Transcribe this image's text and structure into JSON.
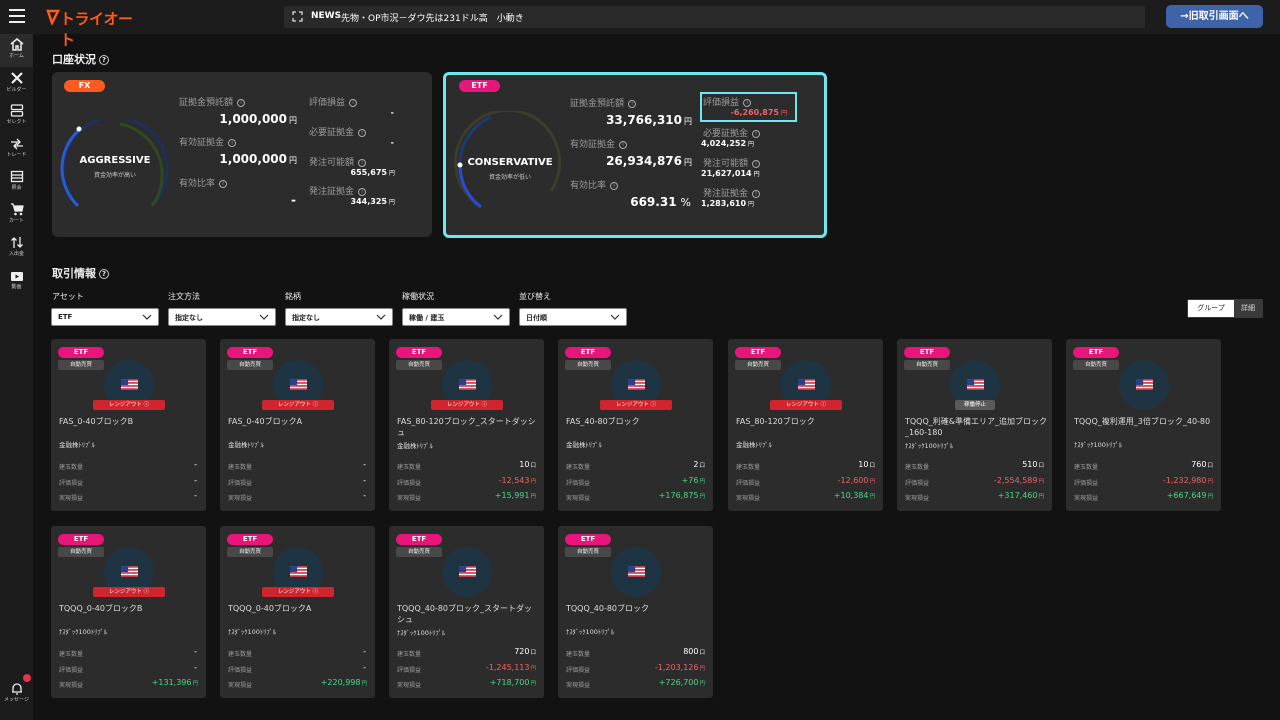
{
  "header": {
    "logo_text": "トライオート",
    "news_label": "NEWS",
    "news_text": "先物・OP市況－ダウ先は231ドル高　小動き",
    "old_screen_button": "→旧取引画面へ"
  },
  "sidebar": {
    "items": [
      {
        "label": "ホーム",
        "icon": "home-icon",
        "active": true
      },
      {
        "label": "ビルダー",
        "icon": "tools-icon"
      },
      {
        "label": "セレクト",
        "icon": "select-icon"
      },
      {
        "label": "トレード",
        "icon": "trade-icon"
      },
      {
        "label": "照会",
        "icon": "list-icon"
      },
      {
        "label": "カート",
        "icon": "cart-icon"
      },
      {
        "label": "入出金",
        "icon": "transfer-icon"
      },
      {
        "label": "動画",
        "icon": "video-icon"
      }
    ],
    "message_label": "メッセージ"
  },
  "account_status": {
    "title": "口座状況",
    "fx": {
      "badge": "FX",
      "gauge_label": "AGGRESSIVE",
      "gauge_sub": "資金効率が高い",
      "deposit_label": "証拠金預託額",
      "deposit_value": "1,000,000",
      "effective_label": "有効証拠金",
      "effective_value": "1,000,000",
      "ratio_label": "有効比率",
      "ratio_value": "-",
      "pl_label": "評価損益",
      "pl_value": "-",
      "required_label": "必要証拠金",
      "required_value": "-",
      "available_label": "発注可能額",
      "available_value": "655,675",
      "ordered_label": "発注証拠金",
      "ordered_value": "344,325",
      "yen": "円"
    },
    "etf": {
      "badge": "ETF",
      "gauge_label": "CONSERVATIVE",
      "gauge_sub": "資金効率が低い",
      "deposit_label": "証拠金預託額",
      "deposit_value": "33,766,310",
      "effective_label": "有効証拠金",
      "effective_value": "26,934,876",
      "ratio_label": "有効比率",
      "ratio_value": "669.31",
      "ratio_unit": "%",
      "pl_label": "評価損益",
      "pl_value": "-6,260,875",
      "required_label": "必要証拠金",
      "required_value": "4,024,252",
      "available_label": "発注可能額",
      "available_value": "21,627,014",
      "ordered_label": "発注証拠金",
      "ordered_value": "1,283,610",
      "yen": "円"
    }
  },
  "trade_info": {
    "title": "取引情報",
    "filters": [
      {
        "label": "アセット",
        "value": "ETF"
      },
      {
        "label": "注文方法",
        "value": "指定なし"
      },
      {
        "label": "銘柄",
        "value": "指定なし"
      },
      {
        "label": "稼働状況",
        "value": "稼働 / 建玉"
      },
      {
        "label": "並び替え",
        "value": "日付順"
      }
    ],
    "view_toggle": {
      "group": "グループ",
      "detail": "詳細"
    },
    "row_labels": {
      "position": "建玉数量",
      "pl": "評価損益",
      "realized": "実現損益"
    },
    "cards": [
      {
        "badge": "ETF",
        "auto": "自動売買",
        "status": "レンジアウト",
        "status_type": "out",
        "name": "FAS_0-40ブロックB",
        "category": "金融株ﾄﾘﾌﾟﾙ",
        "qty": "-",
        "qty_unit": "",
        "pl": "-",
        "pl_unit": "",
        "pl_sign": "",
        "realized": "-",
        "realized_unit": "",
        "realized_sign": ""
      },
      {
        "badge": "ETF",
        "auto": "自動売買",
        "status": "レンジアウト",
        "status_type": "out",
        "name": "FAS_0-40ブロックA",
        "category": "金融株ﾄﾘﾌﾟﾙ",
        "qty": "-",
        "qty_unit": "",
        "pl": "-",
        "pl_unit": "",
        "pl_sign": "",
        "realized": "-",
        "realized_unit": "",
        "realized_sign": ""
      },
      {
        "badge": "ETF",
        "auto": "自動売買",
        "status": "レンジアウト",
        "status_type": "out",
        "name": "FAS_80-120ブロック_スタートダッシュ",
        "category": "金融株ﾄﾘﾌﾟﾙ",
        "qty": "10",
        "qty_unit": "口",
        "pl": "-12,543",
        "pl_unit": "円",
        "pl_sign": "neg",
        "realized": "+15,991",
        "realized_unit": "円",
        "realized_sign": "pos"
      },
      {
        "badge": "ETF",
        "auto": "自動売買",
        "status": "レンジアウト",
        "status_type": "out",
        "name": "FAS_40-80ブロック",
        "category": "金融株ﾄﾘﾌﾟﾙ",
        "qty": "2",
        "qty_unit": "口",
        "pl": "+76",
        "pl_unit": "円",
        "pl_sign": "pos",
        "realized": "+176,875",
        "realized_unit": "円",
        "realized_sign": "pos"
      },
      {
        "badge": "ETF",
        "auto": "自動売買",
        "status": "レンジアウト",
        "status_type": "out",
        "name": "FAS_80-120ブロック",
        "category": "金融株ﾄﾘﾌﾟﾙ",
        "qty": "10",
        "qty_unit": "口",
        "pl": "-12,600",
        "pl_unit": "円",
        "pl_sign": "neg",
        "realized": "+10,384",
        "realized_unit": "円",
        "realized_sign": "pos"
      },
      {
        "badge": "ETF",
        "auto": "自動売買",
        "status": "稼働停止",
        "status_type": "stop",
        "name": "TQQQ_利確&準備エリア_追加ブロック_160-180",
        "category": "ﾅｽﾀﾞｯｸ100ﾄﾘﾌﾟﾙ",
        "qty": "510",
        "qty_unit": "口",
        "pl": "-2,554,589",
        "pl_unit": "円",
        "pl_sign": "neg",
        "realized": "+317,460",
        "realized_unit": "円",
        "realized_sign": "pos"
      },
      {
        "badge": "ETF",
        "auto": "自動売買",
        "status": "",
        "status_type": "none",
        "name": "TQQQ_複利運用_3倍ブロック_40-80",
        "category": "ﾅｽﾀﾞｯｸ100ﾄﾘﾌﾟﾙ",
        "qty": "760",
        "qty_unit": "口",
        "pl": "-1,232,980",
        "pl_unit": "円",
        "pl_sign": "neg",
        "realized": "+667,649",
        "realized_unit": "円",
        "realized_sign": "pos"
      },
      {
        "badge": "ETF",
        "auto": "自動売買",
        "status": "レンジアウト",
        "status_type": "out",
        "name": "TQQQ_0-40ブロックB",
        "category": "ﾅｽﾀﾞｯｸ100ﾄﾘﾌﾟﾙ",
        "qty": "-",
        "qty_unit": "",
        "pl": "-",
        "pl_unit": "",
        "pl_sign": "",
        "realized": "+131,396",
        "realized_unit": "円",
        "realized_sign": "pos"
      },
      {
        "badge": "ETF",
        "auto": "自動売買",
        "status": "レンジアウト",
        "status_type": "out",
        "name": "TQQQ_0-40ブロックA",
        "category": "ﾅｽﾀﾞｯｸ100ﾄﾘﾌﾟﾙ",
        "qty": "-",
        "qty_unit": "",
        "pl": "-",
        "pl_unit": "",
        "pl_sign": "",
        "realized": "+220,998",
        "realized_unit": "円",
        "realized_sign": "pos"
      },
      {
        "badge": "ETF",
        "auto": "自動売買",
        "status": "",
        "status_type": "none",
        "name": "TQQQ_40-80ブロック_スタートダッシュ",
        "category": "ﾅｽﾀﾞｯｸ100ﾄﾘﾌﾟﾙ",
        "qty": "720",
        "qty_unit": "口",
        "pl": "-1,245,113",
        "pl_unit": "円",
        "pl_sign": "neg",
        "realized": "+718,700",
        "realized_unit": "円",
        "realized_sign": "pos"
      },
      {
        "badge": "ETF",
        "auto": "自動売買",
        "status": "",
        "status_type": "none",
        "name": "TQQQ_40-80ブロック",
        "category": "ﾅｽﾀﾞｯｸ100ﾄﾘﾌﾟﾙ",
        "qty": "800",
        "qty_unit": "口",
        "pl": "-1,203,126",
        "pl_unit": "円",
        "pl_sign": "neg",
        "realized": "+726,700",
        "realized_unit": "円",
        "realized_sign": "pos"
      }
    ]
  },
  "colors": {
    "fx_badge": "#ff5a1f",
    "etf_badge": "#e8167a",
    "highlight": "#6fe7ee",
    "negative": "#f06464",
    "positive": "#4cd787",
    "button": "#3f63a9"
  }
}
